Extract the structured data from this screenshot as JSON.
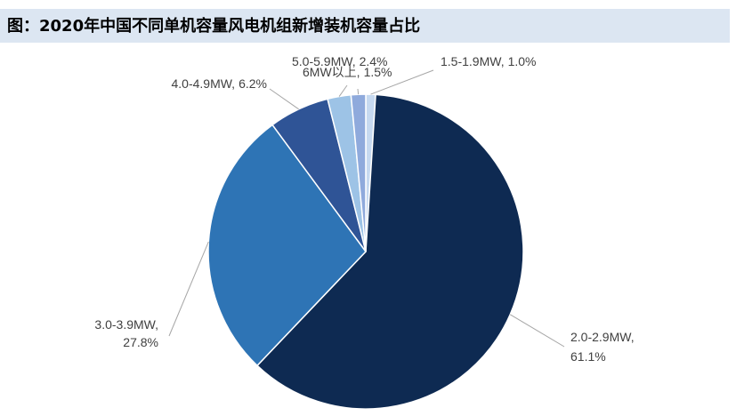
{
  "chart_data": {
    "type": "pie",
    "title": "图：2020年中国不同单机容量风电机组新增装机容量占比",
    "categories": [
      "1.5-1.9MW,",
      "2.0-2.9MW,",
      "3.0-3.9MW,",
      "4.0-4.9MW,",
      "5.0-5.9MW,",
      "6MW以上,"
    ],
    "values": [
      1.0,
      61.1,
      27.8,
      6.2,
      2.4,
      1.5
    ],
    "value_labels": [
      "1.0%",
      "61.1%",
      "27.8%",
      "6.2%",
      "2.4%",
      "1.5%"
    ],
    "colors": [
      "#c6d9f0",
      "#0e2a52",
      "#2e74b5",
      "#2f5496",
      "#9dc3e6",
      "#8faadc"
    ]
  }
}
